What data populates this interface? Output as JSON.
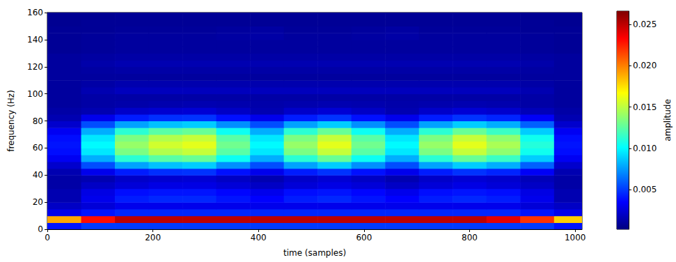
{
  "chart_data": {
    "type": "heatmap",
    "xlabel": "time (samples)",
    "ylabel": "frequency (Hz)",
    "xlim": [
      0,
      1013
    ],
    "xticks": [
      0,
      200,
      400,
      600,
      800,
      1000
    ],
    "ylim": [
      0,
      160
    ],
    "yticks": [
      0,
      20,
      40,
      60,
      80,
      100,
      120,
      140,
      160
    ],
    "grid": false,
    "x": [
      32,
      96,
      160,
      224,
      288,
      352,
      416,
      480,
      544,
      608,
      672,
      736,
      800,
      864,
      928,
      992
    ],
    "y": [
      2.5,
      7.5,
      12.5,
      17.5,
      22.5,
      27.5,
      32.5,
      37.5,
      42.5,
      47.5,
      52.5,
      57.5,
      62.5,
      67.5,
      72.5,
      77.5,
      82.5,
      87.5,
      92.5,
      97.5,
      102.5,
      107.5,
      112.5,
      117.5,
      122.5,
      127.5,
      132.5,
      137.5,
      142.5,
      147.5,
      152.5,
      157.5
    ],
    "cells": [
      [
        0.004,
        0.005,
        0.005,
        0.005,
        0.005,
        0.005,
        0.005,
        0.005,
        0.005,
        0.005,
        0.005,
        0.005,
        0.005,
        0.005,
        0.005,
        0.004
      ],
      [
        0.019,
        0.023,
        0.025,
        0.025,
        0.025,
        0.025,
        0.025,
        0.025,
        0.025,
        0.025,
        0.025,
        0.025,
        0.025,
        0.024,
        0.022,
        0.018
      ],
      [
        0.003,
        0.004,
        0.0045,
        0.0045,
        0.0045,
        0.0045,
        0.0045,
        0.0045,
        0.0045,
        0.0045,
        0.0045,
        0.0045,
        0.0045,
        0.0045,
        0.004,
        0.003
      ],
      [
        0.002,
        0.0025,
        0.003,
        0.003,
        0.003,
        0.003,
        0.003,
        0.003,
        0.003,
        0.003,
        0.003,
        0.003,
        0.003,
        0.003,
        0.0025,
        0.002
      ],
      [
        0.0015,
        0.003,
        0.0042,
        0.0045,
        0.0045,
        0.004,
        0.0035,
        0.0042,
        0.0045,
        0.004,
        0.0035,
        0.0042,
        0.0045,
        0.0042,
        0.003,
        0.0015
      ],
      [
        0.0015,
        0.0028,
        0.0038,
        0.004,
        0.004,
        0.0036,
        0.003,
        0.0038,
        0.004,
        0.0036,
        0.003,
        0.0038,
        0.004,
        0.0038,
        0.0028,
        0.0015
      ],
      [
        0.0012,
        0.002,
        0.0025,
        0.0028,
        0.0028,
        0.0025,
        0.002,
        0.0025,
        0.0028,
        0.0025,
        0.002,
        0.0025,
        0.0028,
        0.0025,
        0.002,
        0.0012
      ],
      [
        0.0012,
        0.0015,
        0.0021,
        0.0023,
        0.0024,
        0.002,
        0.0015,
        0.0021,
        0.0024,
        0.002,
        0.0015,
        0.0021,
        0.0024,
        0.0022,
        0.0017,
        0.0012
      ],
      [
        0.0015,
        0.003,
        0.0042,
        0.0047,
        0.0048,
        0.0039,
        0.003,
        0.0042,
        0.0048,
        0.0039,
        0.003,
        0.0042,
        0.0048,
        0.0044,
        0.0033,
        0.0015
      ],
      [
        0.0022,
        0.0055,
        0.0077,
        0.0085,
        0.0088,
        0.0072,
        0.0055,
        0.0077,
        0.0088,
        0.0072,
        0.0055,
        0.0077,
        0.0088,
        0.008,
        0.006,
        0.0022
      ],
      [
        0.0032,
        0.008,
        0.0112,
        0.0124,
        0.0128,
        0.0104,
        0.008,
        0.0112,
        0.0128,
        0.0104,
        0.008,
        0.0112,
        0.0128,
        0.0116,
        0.0088,
        0.0032
      ],
      [
        0.0038,
        0.0095,
        0.0133,
        0.0147,
        0.0152,
        0.0124,
        0.0095,
        0.0133,
        0.0152,
        0.0124,
        0.0095,
        0.0133,
        0.0152,
        0.0138,
        0.0105,
        0.0038
      ],
      [
        0.004,
        0.01,
        0.014,
        0.0155,
        0.016,
        0.013,
        0.01,
        0.014,
        0.016,
        0.013,
        0.01,
        0.014,
        0.016,
        0.0145,
        0.011,
        0.004
      ],
      [
        0.0038,
        0.0095,
        0.0133,
        0.0147,
        0.0152,
        0.0124,
        0.0095,
        0.0133,
        0.0152,
        0.0124,
        0.0095,
        0.0133,
        0.0152,
        0.0138,
        0.0105,
        0.0038
      ],
      [
        0.0032,
        0.008,
        0.0112,
        0.0124,
        0.0128,
        0.0104,
        0.008,
        0.0112,
        0.0128,
        0.0104,
        0.008,
        0.0112,
        0.0128,
        0.0116,
        0.0088,
        0.0032
      ],
      [
        0.0022,
        0.0055,
        0.0077,
        0.0085,
        0.0088,
        0.0072,
        0.0055,
        0.0077,
        0.0088,
        0.0072,
        0.0055,
        0.0077,
        0.0088,
        0.008,
        0.006,
        0.0022
      ],
      [
        0.0015,
        0.003,
        0.0042,
        0.0047,
        0.0048,
        0.0039,
        0.003,
        0.0042,
        0.0048,
        0.0039,
        0.003,
        0.0042,
        0.0048,
        0.0044,
        0.0033,
        0.0015
      ],
      [
        0.0012,
        0.0015,
        0.0021,
        0.0023,
        0.0024,
        0.002,
        0.0015,
        0.0021,
        0.0024,
        0.002,
        0.0015,
        0.0021,
        0.0024,
        0.0022,
        0.0017,
        0.0012
      ],
      [
        0.001,
        0.0012,
        0.0013,
        0.0014,
        0.0015,
        0.0014,
        0.0013,
        0.0014,
        0.0015,
        0.0014,
        0.0013,
        0.0014,
        0.0015,
        0.0014,
        0.0012,
        0.001
      ],
      [
        0.001,
        0.0012,
        0.0012,
        0.0012,
        0.0012,
        0.0012,
        0.0012,
        0.0012,
        0.0012,
        0.0012,
        0.0012,
        0.0012,
        0.0012,
        0.0012,
        0.0012,
        0.001
      ],
      [
        0.001,
        0.0015,
        0.0018,
        0.0018,
        0.0018,
        0.0018,
        0.0018,
        0.0018,
        0.0018,
        0.0018,
        0.0018,
        0.0018,
        0.0018,
        0.0018,
        0.0015,
        0.001
      ],
      [
        0.001,
        0.0012,
        0.0014,
        0.0014,
        0.0014,
        0.0014,
        0.0014,
        0.0014,
        0.0014,
        0.0014,
        0.0014,
        0.0014,
        0.0014,
        0.0014,
        0.0012,
        0.001
      ],
      [
        0.001,
        0.001,
        0.001,
        0.001,
        0.001,
        0.001,
        0.001,
        0.001,
        0.001,
        0.001,
        0.001,
        0.001,
        0.001,
        0.001,
        0.001,
        0.001
      ],
      [
        0.001,
        0.0011,
        0.0012,
        0.0012,
        0.0012,
        0.0012,
        0.0012,
        0.0012,
        0.0012,
        0.0012,
        0.0012,
        0.0012,
        0.0012,
        0.0012,
        0.0011,
        0.001
      ],
      [
        0.001,
        0.0013,
        0.0015,
        0.0015,
        0.0015,
        0.0015,
        0.0015,
        0.0015,
        0.0015,
        0.0015,
        0.0015,
        0.0015,
        0.0015,
        0.0015,
        0.0013,
        0.001
      ],
      [
        0.001,
        0.0011,
        0.0012,
        0.0012,
        0.0012,
        0.0012,
        0.0012,
        0.0012,
        0.0012,
        0.0012,
        0.0012,
        0.0012,
        0.0012,
        0.0012,
        0.0011,
        0.001
      ],
      [
        0.0008,
        0.0009,
        0.001,
        0.001,
        0.001,
        0.001,
        0.001,
        0.001,
        0.001,
        0.001,
        0.001,
        0.001,
        0.001,
        0.001,
        0.0009,
        0.0008
      ],
      [
        0.0008,
        0.0009,
        0.001,
        0.001,
        0.001,
        0.001,
        0.001,
        0.001,
        0.001,
        0.001,
        0.001,
        0.001,
        0.001,
        0.001,
        0.0009,
        0.0008
      ],
      [
        0.0008,
        0.0009,
        0.001,
        0.001,
        0.001,
        0.0011,
        0.0012,
        0.001,
        0.001,
        0.0011,
        0.0012,
        0.001,
        0.001,
        0.001,
        0.0009,
        0.0008
      ],
      [
        0.0008,
        0.0008,
        0.0009,
        0.0009,
        0.0009,
        0.001,
        0.0011,
        0.0009,
        0.0009,
        0.001,
        0.0011,
        0.0009,
        0.0009,
        0.0009,
        0.0008,
        0.0008
      ],
      [
        0.0007,
        0.0008,
        0.0008,
        0.0008,
        0.0008,
        0.0008,
        0.0008,
        0.0008,
        0.0008,
        0.0008,
        0.0008,
        0.0008,
        0.0008,
        0.0008,
        0.0008,
        0.0007
      ],
      [
        0.0007,
        0.0007,
        0.0008,
        0.0008,
        0.0008,
        0.0008,
        0.0008,
        0.0008,
        0.0008,
        0.0008,
        0.0008,
        0.0008,
        0.0008,
        0.0008,
        0.0007,
        0.0007
      ]
    ],
    "colorbar": {
      "label": "amplitude",
      "range": [
        0.0002,
        0.0266
      ],
      "ticks": [
        {
          "value": 0.005,
          "label": "0.005"
        },
        {
          "value": 0.01,
          "label": "0.010"
        },
        {
          "value": 0.015,
          "label": "0.015"
        },
        {
          "value": 0.02,
          "label": "0.020"
        },
        {
          "value": 0.025,
          "label": "0.025"
        }
      ]
    }
  }
}
